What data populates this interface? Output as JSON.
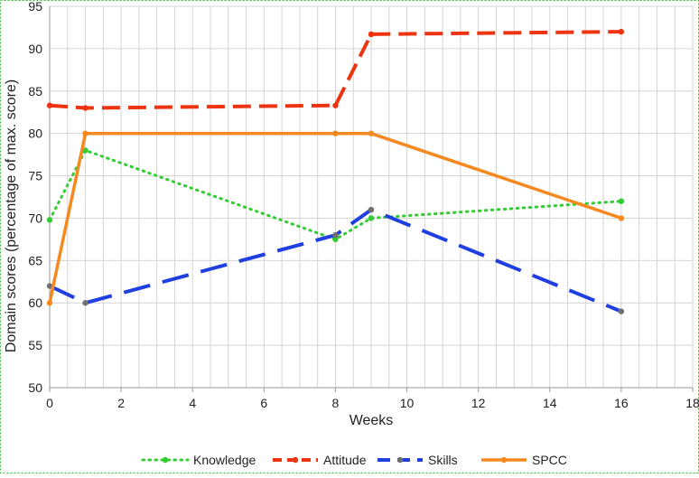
{
  "chart_data": {
    "type": "line",
    "title": "",
    "xlabel": "Weeks",
    "ylabel": "Domain scores (percentage of max. score)",
    "xlim": [
      0,
      18
    ],
    "ylim": [
      50,
      95
    ],
    "xticks": [
      0,
      2,
      4,
      6,
      8,
      10,
      12,
      14,
      16,
      18
    ],
    "yticks": [
      50,
      55,
      60,
      65,
      70,
      75,
      80,
      85,
      90,
      95
    ],
    "xtick_labels": [
      "0",
      "2",
      "4",
      "6",
      "8",
      "10",
      "12",
      "14",
      "16",
      "18"
    ],
    "ytick_labels": [
      "50",
      "55",
      "60",
      "65",
      "70",
      "75",
      "80",
      "85",
      "90",
      "95"
    ],
    "grid": true,
    "legend_position": "bottom",
    "series": [
      {
        "name": "Knowledge",
        "color": "#33cc33",
        "marker_color": "#33cc33",
        "style": "dotted",
        "points": [
          [
            0,
            69.8
          ],
          [
            1,
            78
          ],
          [
            8,
            67.5
          ],
          [
            9,
            70
          ],
          [
            16,
            72
          ]
        ]
      },
      {
        "name": "Attitude",
        "color": "#ee3311",
        "marker_color": "#ee3311",
        "style": "dashed",
        "points": [
          [
            0,
            83.3
          ],
          [
            1,
            83
          ],
          [
            8,
            83.3
          ],
          [
            9,
            91.7
          ],
          [
            16,
            92
          ]
        ]
      },
      {
        "name": "Skills",
        "color": "#1f3fe0",
        "marker_color": "#707070",
        "style": "longdash",
        "points": [
          [
            0,
            62
          ],
          [
            1,
            60
          ],
          [
            8,
            68
          ],
          [
            9,
            71
          ],
          [
            16,
            59
          ]
        ]
      },
      {
        "name": "SPCC",
        "color": "#f5881f",
        "marker_color": "#f5881f",
        "style": "solid",
        "points": [
          [
            0,
            60
          ],
          [
            1,
            80
          ],
          [
            8,
            80
          ],
          [
            9,
            80
          ],
          [
            16,
            70
          ]
        ]
      }
    ]
  }
}
